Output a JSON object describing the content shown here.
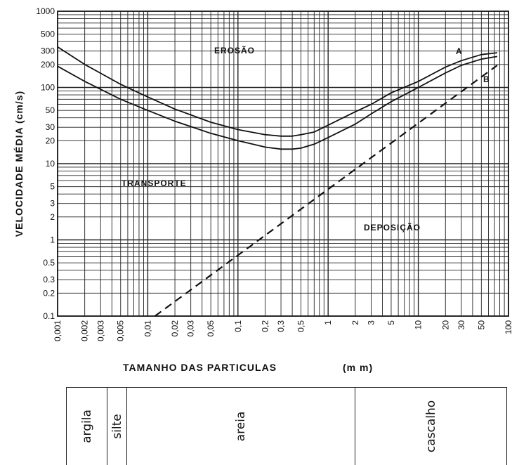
{
  "chart_data": {
    "type": "line",
    "title": "",
    "xlabel": "TAMANHO DAS PARTICULAS",
    "xunit": "(m m)",
    "ylabel": "VELOCIDADE MÉDIA (cm/s)",
    "xscale": "log",
    "yscale": "log",
    "xlim": [
      0.001,
      100
    ],
    "ylim": [
      0.1,
      1000
    ],
    "grid": true,
    "x_ticks": [
      "0,001",
      "0,002",
      "0,003",
      "0,005",
      "0,01",
      "0,02",
      "0,03",
      "0,05",
      "0,1",
      "0,2",
      "0,3",
      "0,5",
      "1",
      "2",
      "3",
      "5",
      "10",
      "20",
      "30",
      "50",
      "100"
    ],
    "x_tick_values": [
      0.001,
      0.002,
      0.003,
      0.005,
      0.01,
      0.02,
      0.03,
      0.05,
      0.1,
      0.2,
      0.3,
      0.5,
      1,
      2,
      3,
      5,
      10,
      20,
      30,
      50,
      100
    ],
    "y_ticks": [
      "1000",
      "500",
      "300",
      "200",
      "100",
      "50",
      "30",
      "20",
      "10",
      "5",
      "3",
      "2",
      "1",
      "0.5",
      "0.3",
      "0.2",
      "0.1"
    ],
    "y_tick_values": [
      1000,
      500,
      300,
      200,
      100,
      50,
      30,
      20,
      10,
      5,
      3,
      2,
      1,
      0.5,
      0.3,
      0.2,
      0.1
    ],
    "series": [
      {
        "name": "A",
        "style": "solid",
        "x": [
          0.001,
          0.002,
          0.005,
          0.01,
          0.02,
          0.05,
          0.1,
          0.2,
          0.3,
          0.4,
          0.5,
          0.7,
          1,
          2,
          3,
          5,
          10,
          20,
          30,
          50,
          75
        ],
        "y": [
          340,
          200,
          110,
          75,
          52,
          35,
          28,
          24,
          23,
          23,
          24,
          26,
          32,
          48,
          60,
          85,
          120,
          185,
          225,
          270,
          285
        ]
      },
      {
        "name": "",
        "style": "solid",
        "x": [
          0.001,
          0.002,
          0.005,
          0.01,
          0.02,
          0.05,
          0.1,
          0.2,
          0.3,
          0.4,
          0.5,
          0.7,
          1,
          2,
          3,
          5,
          10,
          20,
          30,
          50,
          75
        ],
        "y": [
          190,
          120,
          70,
          50,
          36,
          25,
          20,
          16.5,
          15.5,
          15.5,
          16,
          18,
          22,
          33,
          45,
          65,
          100,
          155,
          195,
          235,
          255
        ]
      },
      {
        "name": "B",
        "style": "dashed",
        "x": [
          0.012,
          75
        ],
        "y": [
          0.1,
          195
        ]
      }
    ],
    "regions": [
      "EROSÃO",
      "TRANSPORTE",
      "DEPOSIÇÃO"
    ]
  },
  "grain_classes": [
    {
      "label": "argila"
    },
    {
      "label": "silte"
    },
    {
      "label": "areia"
    },
    {
      "label": "cascalho"
    }
  ]
}
